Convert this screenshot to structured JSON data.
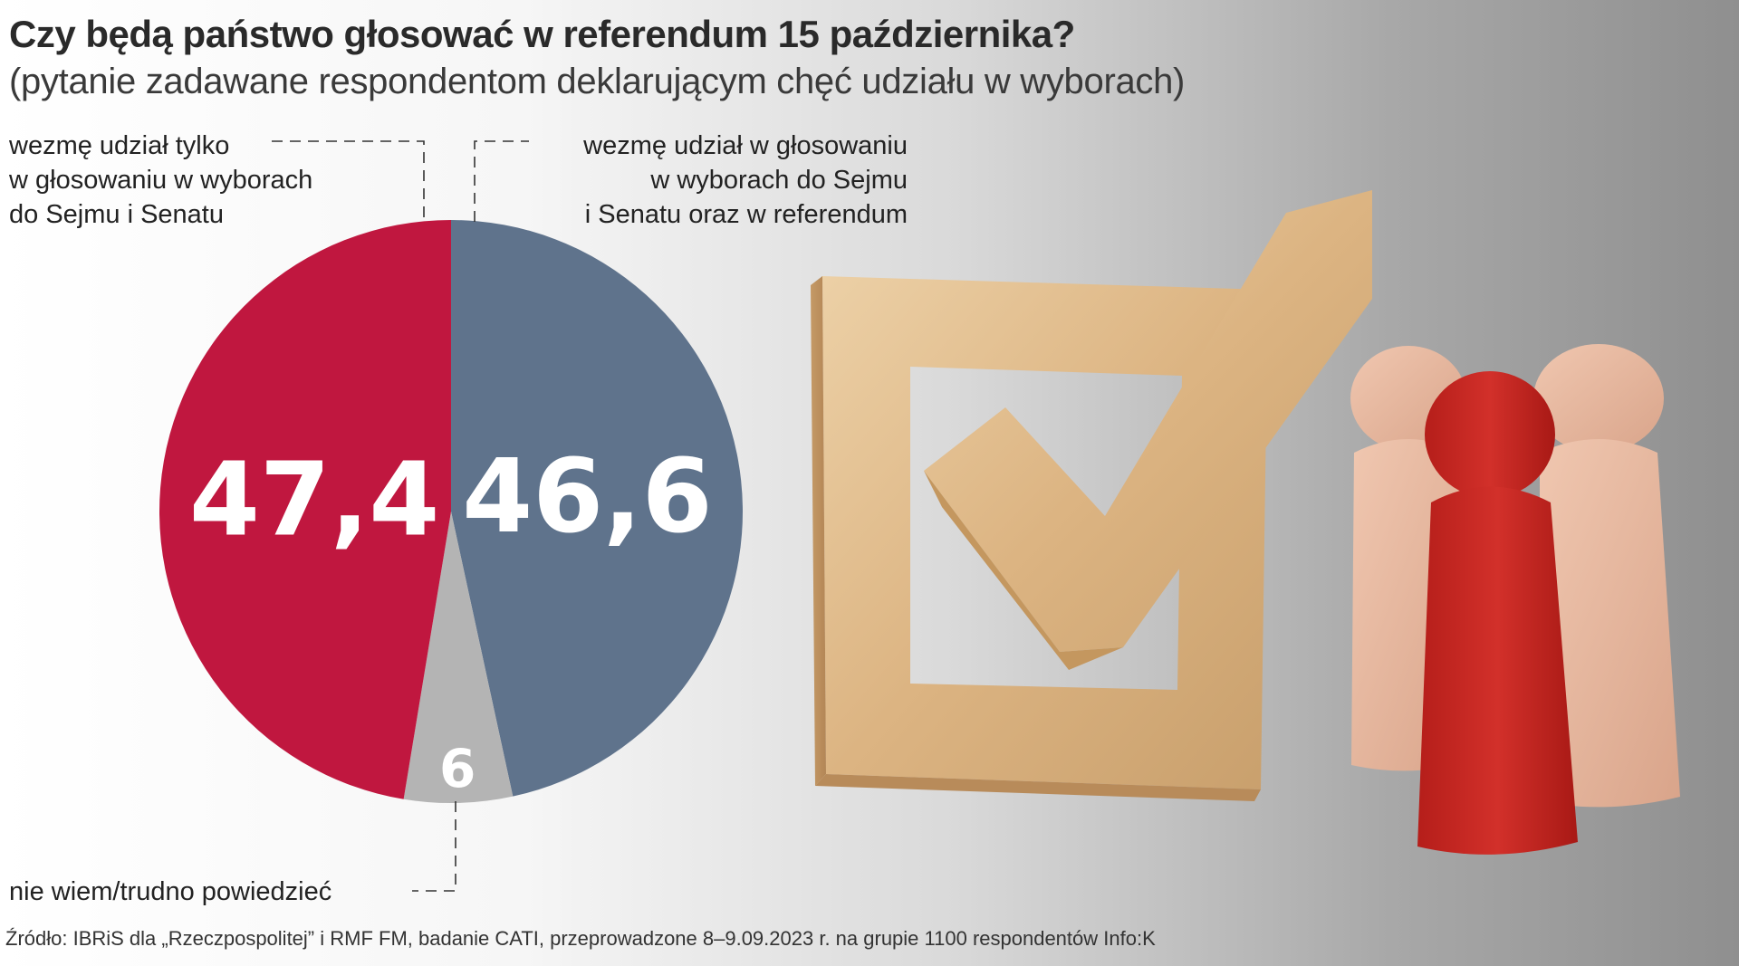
{
  "title": "Czy będą państwo głosować w referendum 15 października?",
  "subtitle": "(pytanie zadawane respondentom deklarującym chęć udziału w wyborach)",
  "labels": {
    "only_elections": [
      "wezmę udział tylko",
      "w głosowaniu w wyborach",
      "do Sejmu i Senatu"
    ],
    "elections_and_referendum": [
      "wezmę udział w głosowaniu",
      "w wyborach do Sejmu",
      "i Senatu oraz w referendum"
    ],
    "dont_know": "nie wiem/trudno powiedzieć"
  },
  "source": "Źródło: IBRiS dla „Rzeczpospolitej” i RMF FM, badanie CATI, przeprowadzone 8–9.09.2023 r. na grupie 1100 respondentów Info:K",
  "chart_data": {
    "type": "pie",
    "slices": [
      {
        "label": "wezmę udział w głosowaniu w wyborach do Sejmu i Senatu oraz w referendum",
        "value": 46.6,
        "display": "46,6",
        "color": "#5f738c"
      },
      {
        "label": "nie wiem/trudno powiedzieć",
        "value": 6,
        "display": "6",
        "color": "#b4b4b4"
      },
      {
        "label": "wezmę udział tylko w głosowaniu w wyborach do Sejmu i Senatu",
        "value": 47.4,
        "display": "47,4",
        "color": "#c0173f"
      }
    ]
  },
  "colors": {
    "accent_red": "#c0173f",
    "accent_blue": "#5f738c",
    "neutral_gray": "#b4b4b4",
    "figure_red": "#c8241f",
    "wood": "#e3bf91"
  }
}
